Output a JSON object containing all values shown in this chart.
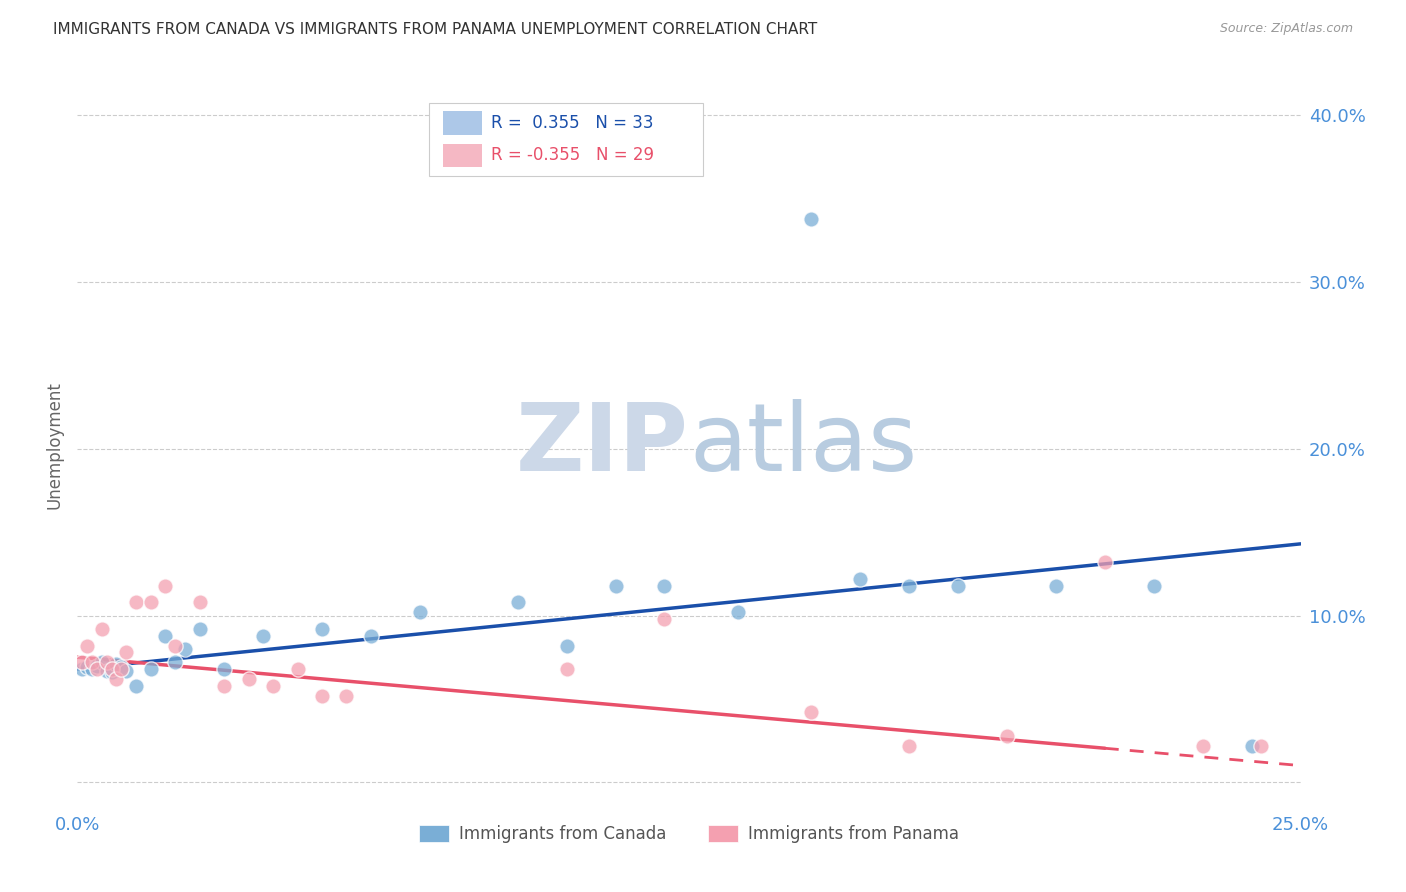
{
  "title": "IMMIGRANTS FROM CANADA VS IMMIGRANTS FROM PANAMA UNEMPLOYMENT CORRELATION CHART",
  "source": "Source: ZipAtlas.com",
  "ylabel": "Unemployment",
  "xlim": [
    0.0,
    0.25
  ],
  "ylim": [
    -0.015,
    0.42
  ],
  "yticks": [
    0.0,
    0.1,
    0.2,
    0.3,
    0.4
  ],
  "ytick_labels": [
    "",
    "10.0%",
    "20.0%",
    "30.0%",
    "40.0%"
  ],
  "xticks": [
    0.0,
    0.05,
    0.1,
    0.15,
    0.2,
    0.25
  ],
  "xtick_labels": [
    "0.0%",
    "",
    "",
    "",
    "",
    "25.0%"
  ],
  "canada_x": [
    0.001,
    0.002,
    0.003,
    0.004,
    0.005,
    0.006,
    0.007,
    0.008,
    0.009,
    0.01,
    0.012,
    0.015,
    0.018,
    0.02,
    0.022,
    0.025,
    0.03,
    0.038,
    0.05,
    0.06,
    0.07,
    0.09,
    0.1,
    0.11,
    0.12,
    0.135,
    0.15,
    0.16,
    0.17,
    0.18,
    0.2,
    0.22,
    0.24
  ],
  "canada_y": [
    0.068,
    0.069,
    0.068,
    0.07,
    0.072,
    0.067,
    0.066,
    0.071,
    0.069,
    0.067,
    0.058,
    0.068,
    0.088,
    0.072,
    0.08,
    0.092,
    0.068,
    0.088,
    0.092,
    0.088,
    0.102,
    0.108,
    0.082,
    0.118,
    0.118,
    0.102,
    0.338,
    0.122,
    0.118,
    0.118,
    0.118,
    0.118,
    0.022
  ],
  "panama_x": [
    0.001,
    0.002,
    0.003,
    0.004,
    0.005,
    0.006,
    0.007,
    0.008,
    0.009,
    0.01,
    0.012,
    0.015,
    0.018,
    0.02,
    0.025,
    0.03,
    0.035,
    0.04,
    0.045,
    0.05,
    0.055,
    0.1,
    0.12,
    0.15,
    0.17,
    0.19,
    0.21,
    0.23,
    0.242
  ],
  "panama_y": [
    0.072,
    0.082,
    0.072,
    0.068,
    0.092,
    0.072,
    0.068,
    0.062,
    0.068,
    0.078,
    0.108,
    0.108,
    0.118,
    0.082,
    0.108,
    0.058,
    0.062,
    0.058,
    0.068,
    0.052,
    0.052,
    0.068,
    0.098,
    0.042,
    0.022,
    0.028,
    0.132,
    0.022,
    0.022
  ],
  "canada_color": "#7aaed6",
  "panama_color": "#f4a0b0",
  "canada_line_color": "#1a4faa",
  "panama_line_color": "#e8506a",
  "canada_r": 0.355,
  "canada_n": 33,
  "panama_r": -0.355,
  "panama_n": 29,
  "watermark_zip": "ZIP",
  "watermark_atlas": "atlas",
  "watermark_color_zip": "#ccd8e8",
  "watermark_color_atlas": "#b8cce0",
  "axis_label_color": "#4a90d9",
  "grid_color": "#cccccc",
  "title_color": "#333333",
  "legend_box_color_canada": "#adc8e8",
  "legend_box_color_panama": "#f5b8c4",
  "canada_line_intercept": 0.068,
  "canada_line_slope": 0.3,
  "panama_line_intercept": 0.075,
  "panama_line_slope": -0.26
}
